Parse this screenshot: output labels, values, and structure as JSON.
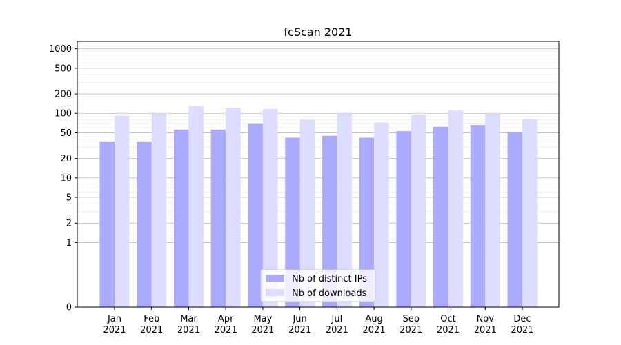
{
  "chart_data": {
    "type": "bar",
    "title": "fcScan 2021",
    "xlabel": "",
    "ylabel": "",
    "yscale": "symlog",
    "ylim": [
      0,
      1300
    ],
    "y_ticks": [
      0,
      1,
      2,
      5,
      10,
      20,
      50,
      100,
      200,
      500,
      1000
    ],
    "y_tick_labels": [
      "0",
      "1",
      "2",
      "5",
      "10",
      "20",
      "50",
      "100",
      "200",
      "500",
      "1000"
    ],
    "categories": [
      "Jan\n2021",
      "Feb\n2021",
      "Mar\n2021",
      "Apr\n2021",
      "May\n2021",
      "Jun\n2021",
      "Jul\n2021",
      "Aug\n2021",
      "Sep\n2021",
      "Oct\n2021",
      "Nov\n2021",
      "Dec\n2021"
    ],
    "series": [
      {
        "name": "Nb of distinct IPs",
        "color": "#aaaaff",
        "values": [
          36,
          36,
          56,
          56,
          70,
          42,
          45,
          42,
          53,
          62,
          66,
          51
        ]
      },
      {
        "name": "Nb of downloads",
        "color": "#ddddff",
        "values": [
          92,
          98,
          130,
          122,
          117,
          80,
          98,
          72,
          94,
          110,
          98,
          82
        ]
      }
    ],
    "grid": "horizontal",
    "legend_position": "bottom-center"
  }
}
